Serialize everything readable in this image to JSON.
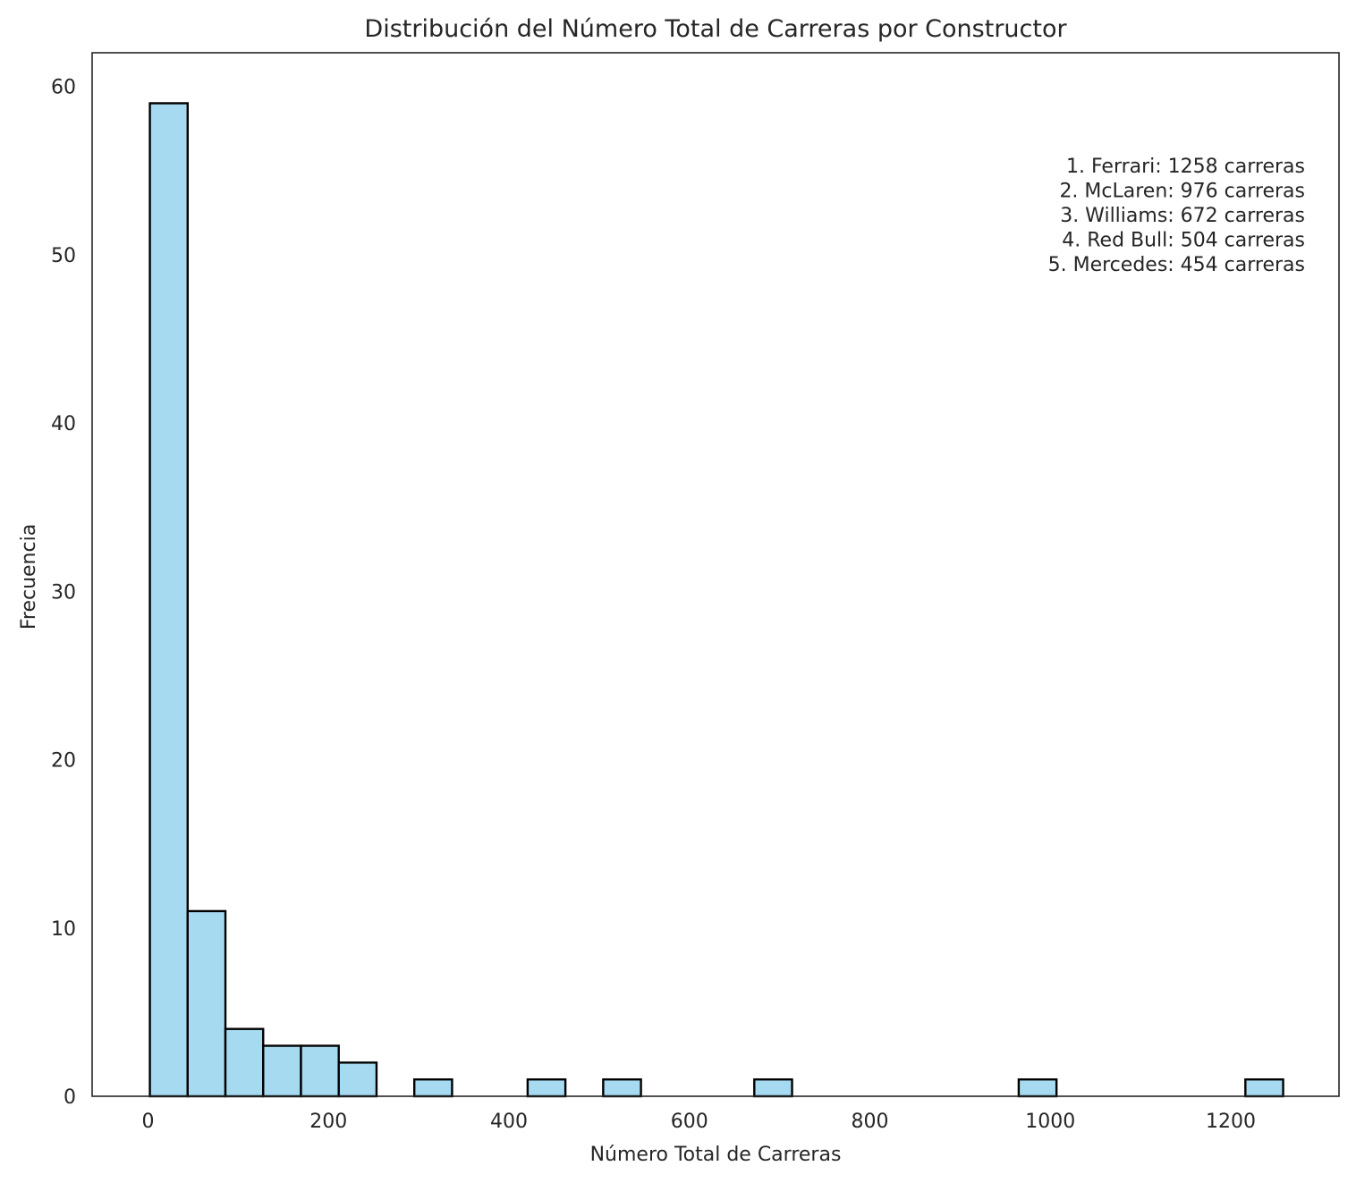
{
  "chart_data": {
    "type": "bar",
    "title": "Distribución del Número Total de Carreras por Constructor",
    "xlabel": "Número Total de Carreras",
    "ylabel": "Frecuencia",
    "xlim": [
      -62,
      1320
    ],
    "ylim": [
      0,
      62
    ],
    "xticks": [
      0,
      200,
      400,
      600,
      800,
      1000,
      1200
    ],
    "yticks": [
      0,
      10,
      20,
      30,
      40,
      50,
      60
    ],
    "grid": false,
    "bin_start": 2,
    "bin_width": 41.87,
    "bin_counts": [
      59,
      11,
      4,
      3,
      3,
      2,
      0,
      1,
      0,
      0,
      1,
      0,
      1,
      0,
      0,
      0,
      1,
      0,
      0,
      0,
      0,
      0,
      0,
      1,
      0,
      0,
      0,
      0,
      0,
      1
    ],
    "bar_color": "#a6daf0",
    "edge_color": "#000000",
    "annotation_lines": [
      "1. Ferrari: 1258 carreras",
      "2. McLaren: 976 carreras",
      "3. Williams: 672 carreras",
      "4. Red Bull: 504 carreras",
      "5. Mercedes: 454 carreras"
    ]
  }
}
